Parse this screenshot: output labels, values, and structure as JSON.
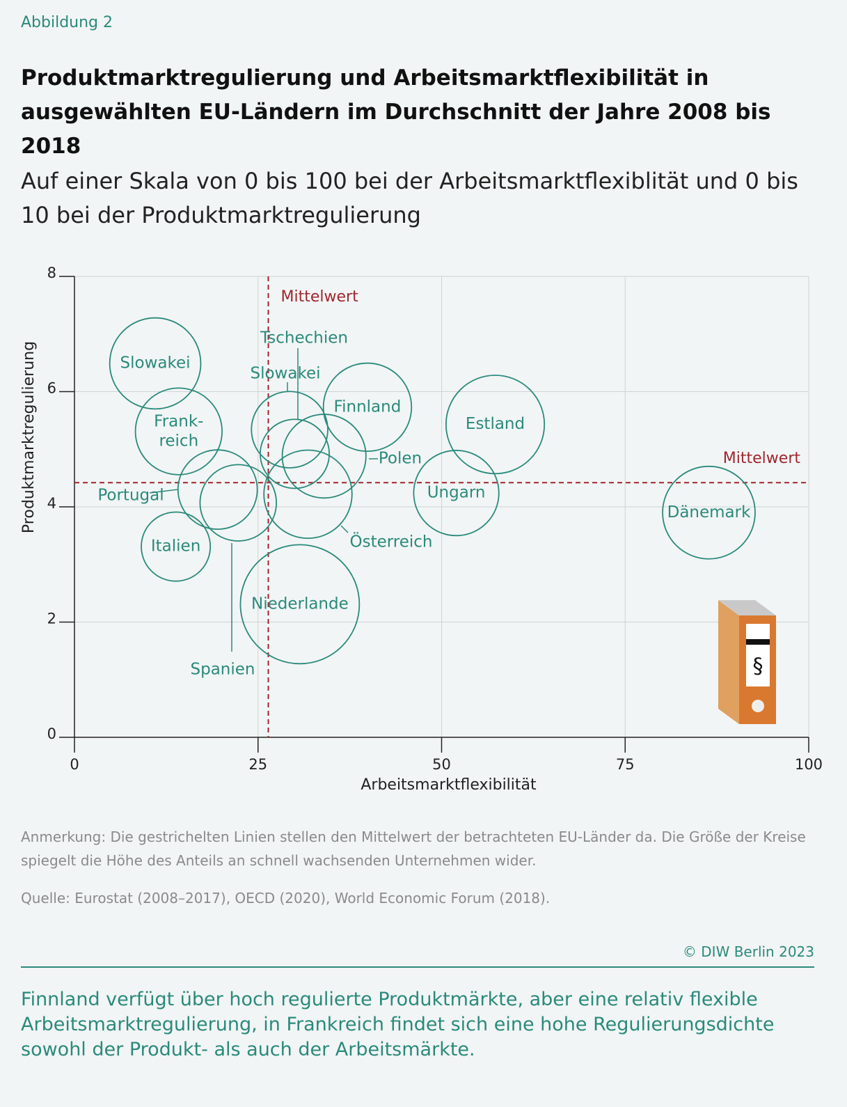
{
  "header": {
    "figure_label": "Abbildung 2",
    "title": "Produktmarktregulierung und Arbeitsmarktflexibilität in ausgewählten EU-Ländern im Durchschnitt der Jahre 2008 bis 2018",
    "subtitle": "Auf einer Skala von 0 bis 100 bei der Arbeitsmarktflexiblität und 0 bis 10 bei der Produktmarktregulierung"
  },
  "chart_data": {
    "type": "bubble",
    "x_label": "Arbeitsmarktflexibilität",
    "y_label": "Produktmarktregulierung",
    "xlim": [
      0,
      100
    ],
    "ylim": [
      0,
      8
    ],
    "xticks": [
      0,
      25,
      50,
      75,
      100
    ],
    "yticks": [
      0,
      2,
      4,
      6,
      8
    ],
    "grid": true,
    "series": [
      {
        "color": "#2a8a7c",
        "labels": [
          "Slowakei",
          "Frank-\nreich",
          "Portugal",
          "Spanien",
          "Italien",
          "Slowakei",
          "Tschechien",
          "Polen",
          "Österreich",
          "Finnland",
          "Niederlande",
          "Estland",
          "Ungarn",
          "Dänemark"
        ],
        "x": [
          11.0,
          14.2,
          19.5,
          22.3,
          13.8,
          29.3,
          30.0,
          34.0,
          31.8,
          39.9,
          30.7,
          57.3,
          52.0,
          86.4
        ],
        "values": [
          6.49,
          5.31,
          4.3,
          4.07,
          3.31,
          5.34,
          4.92,
          4.88,
          4.22,
          5.73,
          2.31,
          5.43,
          4.24,
          3.9
        ],
        "sizes": [
          6.2,
          5.9,
          5.4,
          5.2,
          4.7,
          5.2,
          4.7,
          5.7,
          6.0,
          6.0,
          8.1,
          6.7,
          5.8,
          6.3
        ]
      }
    ],
    "vlines": [
      {
        "value": 26.4,
        "label": "Mittelwert",
        "color": "#a0262e"
      }
    ],
    "hlines": [
      {
        "value": 4.42,
        "label": "Mittelwert",
        "color": "#a0262e"
      }
    ]
  },
  "notes": {
    "note": "Anmerkung: Die gestrichelten Linien stellen den Mittelwert der betrachteten EU-Länder da. Die Größe der Kreise spiegelt die Höhe des Anteils an schnell wachsenden Unternehmen wider.",
    "source": "Quelle: Eurostat (2008–2017), OECD (2020), World Economic Forum (2018).",
    "copyright": "© DIW Berlin 2023"
  },
  "summary": "Finnland verfügt über hoch regulierte Produktmärkte, aber eine relativ flexible Arbeitsmarktregulierung, in Frankreich findet sich eine hohe Regulierungsdichte sowohl der Produkt- als auch der Arbeitsmärkte."
}
